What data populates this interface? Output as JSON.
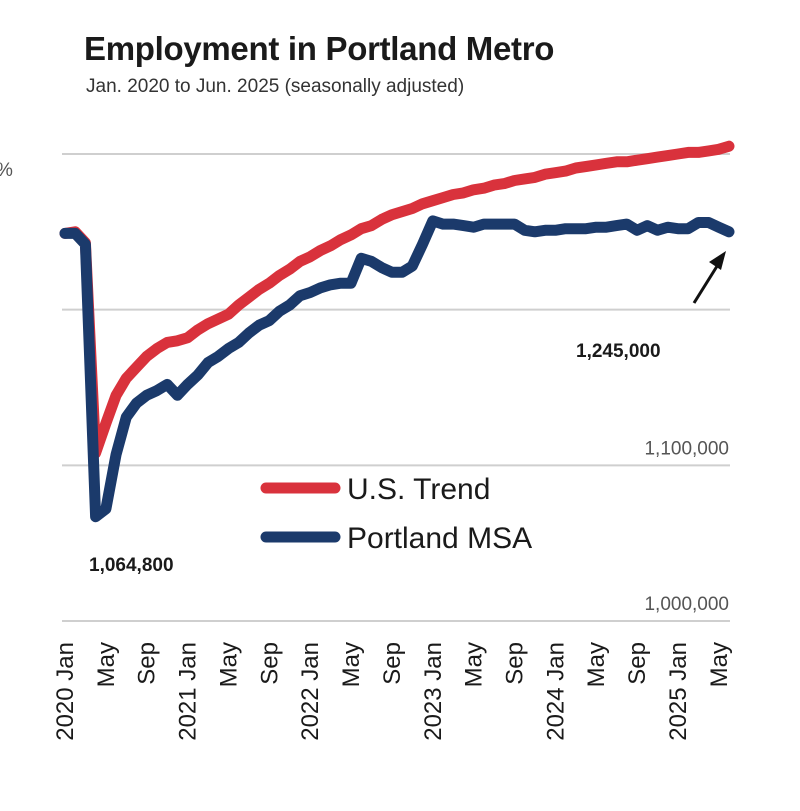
{
  "chart_data": {
    "type": "line",
    "title": "Employment in Portland Metro",
    "subtitle": "Jan. 2020 to Jun. 2025 (seasonally adjusted)",
    "ylim": [
      1000000,
      1300000
    ],
    "yticks": [
      {
        "value": 1000000,
        "label": "1,000,000"
      },
      {
        "value": 1100000,
        "label": "1,100,000"
      },
      {
        "value": 1200000,
        "label": ""
      },
      {
        "value": 1300000,
        "label": ""
      }
    ],
    "y_top_cut_label": "%",
    "x_tick_labels": [
      "2020 Jan",
      "May",
      "Sep",
      "2021 Jan",
      "May",
      "Sep",
      "2022 Jan",
      "May",
      "Sep",
      "2023 Jan",
      "May",
      "Sep",
      "2024 Jan",
      "May",
      "Sep",
      "2025 Jan",
      "May"
    ],
    "x_months": [
      "2020-01",
      "2020-02",
      "2020-03",
      "2020-04",
      "2020-05",
      "2020-06",
      "2020-07",
      "2020-08",
      "2020-09",
      "2020-10",
      "2020-11",
      "2020-12",
      "2021-01",
      "2021-02",
      "2021-03",
      "2021-04",
      "2021-05",
      "2021-06",
      "2021-07",
      "2021-08",
      "2021-09",
      "2021-10",
      "2021-11",
      "2021-12",
      "2022-01",
      "2022-02",
      "2022-03",
      "2022-04",
      "2022-05",
      "2022-06",
      "2022-07",
      "2022-08",
      "2022-09",
      "2022-10",
      "2022-11",
      "2022-12",
      "2023-01",
      "2023-02",
      "2023-03",
      "2023-04",
      "2023-05",
      "2023-06",
      "2023-07",
      "2023-08",
      "2023-09",
      "2023-10",
      "2023-11",
      "2023-12",
      "2024-01",
      "2024-02",
      "2024-03",
      "2024-04",
      "2024-05",
      "2024-06",
      "2024-07",
      "2024-08",
      "2024-09",
      "2024-10",
      "2024-11",
      "2024-12",
      "2025-01",
      "2025-02",
      "2025-03",
      "2025-04",
      "2025-05",
      "2025-06"
    ],
    "series": [
      {
        "name": "U.S. Trend",
        "color": "#d9323c",
        "values": [
          1249000,
          1250000,
          1243000,
          1108000,
          1127000,
          1145000,
          1156000,
          1163000,
          1170000,
          1175000,
          1179000,
          1180000,
          1182000,
          1187000,
          1191000,
          1194000,
          1197000,
          1203000,
          1208000,
          1213000,
          1217000,
          1222000,
          1226000,
          1231000,
          1234000,
          1238000,
          1241000,
          1245000,
          1248000,
          1252000,
          1254000,
          1258000,
          1261000,
          1263000,
          1265000,
          1268000,
          1270000,
          1272000,
          1274000,
          1275000,
          1277000,
          1278000,
          1280000,
          1281000,
          1283000,
          1284000,
          1285000,
          1287000,
          1288000,
          1289000,
          1291000,
          1292000,
          1293000,
          1294000,
          1295000,
          1295000,
          1296000,
          1297000,
          1298000,
          1299000,
          1300000,
          1301000,
          1301000,
          1302000,
          1303000,
          1305000
        ]
      },
      {
        "name": "Portland MSA",
        "color": "#1b3a6b",
        "values": [
          1249000,
          1249000,
          1242000,
          1067000,
          1072000,
          1107000,
          1131000,
          1140000,
          1145000,
          1148000,
          1152000,
          1145000,
          1152000,
          1158000,
          1166000,
          1170000,
          1175000,
          1179000,
          1185000,
          1190000,
          1193000,
          1199000,
          1203000,
          1209000,
          1211000,
          1214000,
          1216000,
          1217000,
          1217000,
          1233000,
          1231000,
          1227000,
          1224000,
          1224000,
          1228000,
          1242000,
          1257000,
          1255000,
          1255000,
          1254000,
          1253000,
          1255000,
          1255000,
          1255000,
          1255000,
          1251000,
          1250000,
          1251000,
          1251000,
          1252000,
          1252000,
          1252000,
          1253000,
          1253000,
          1254000,
          1255000,
          1251000,
          1254000,
          1251000,
          1253000,
          1252000,
          1252000,
          1256000,
          1256000,
          1253000,
          1250000
        ]
      }
    ],
    "annotations": [
      {
        "label": "1,064,800"
      },
      {
        "label": "1,245,000"
      }
    ],
    "legend": "center-bottom",
    "grid": true
  }
}
